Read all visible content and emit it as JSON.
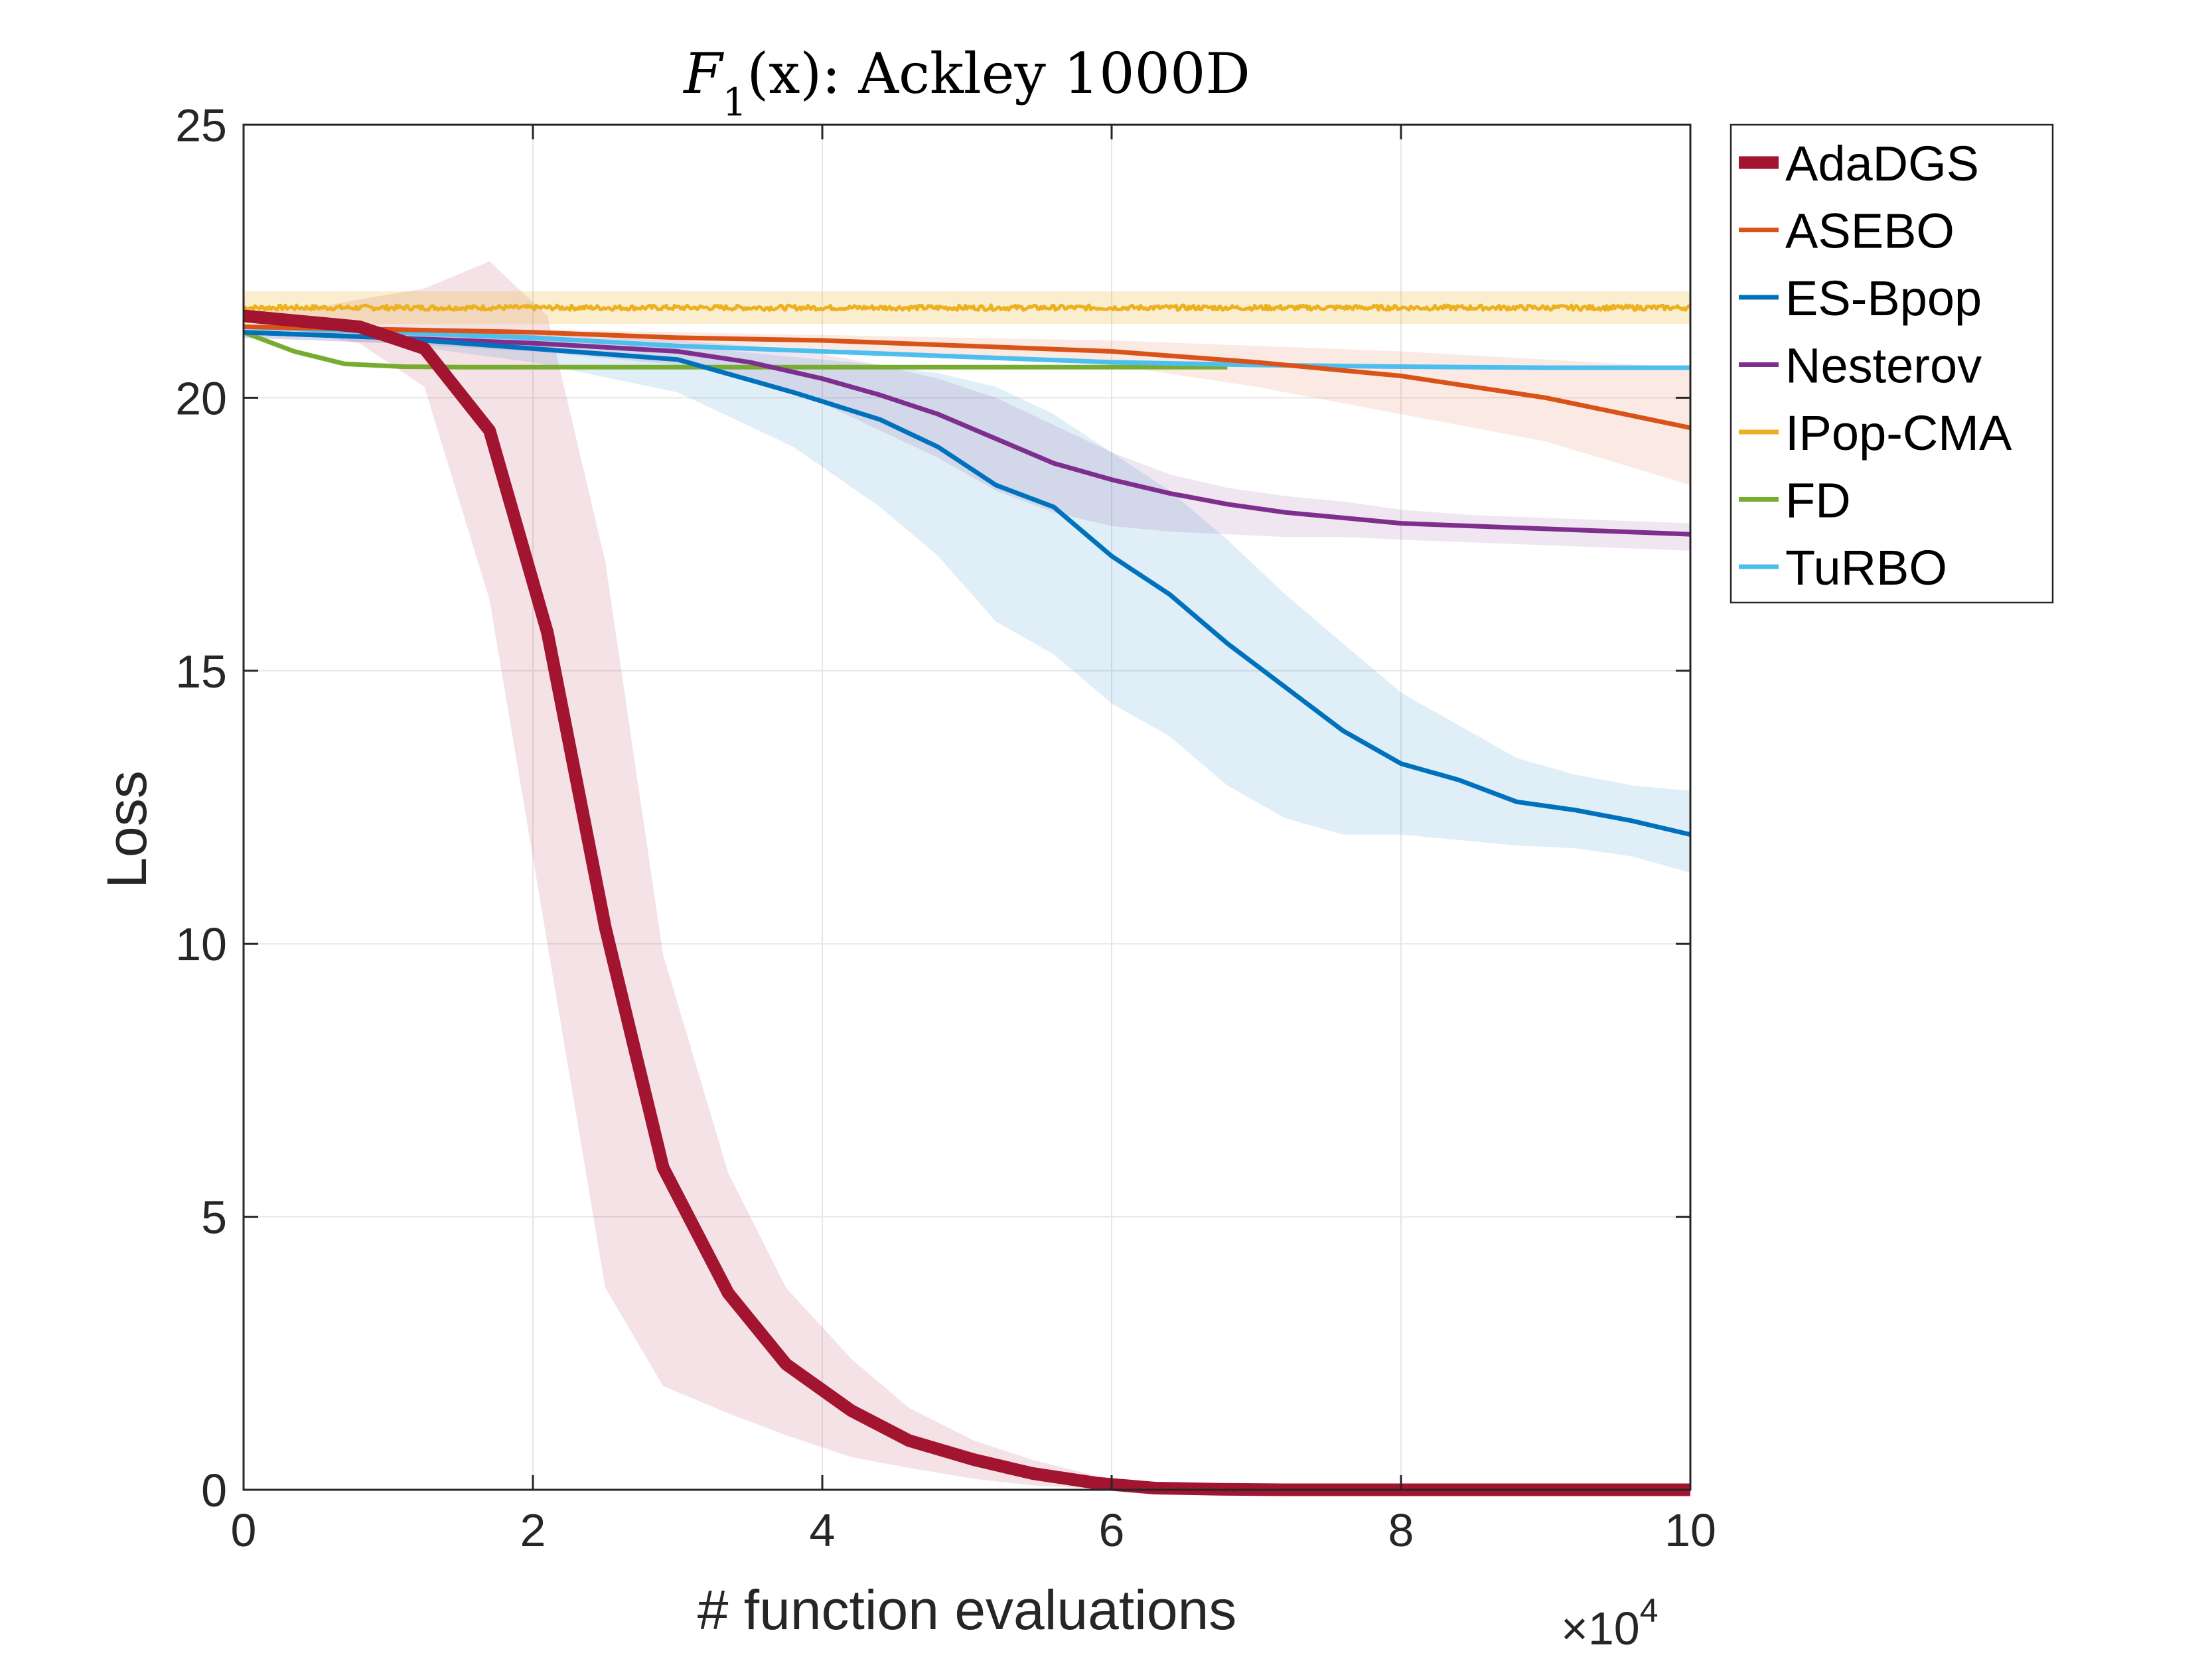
{
  "chart_data": {
    "type": "line",
    "title": "F₁(x): Ackley 1000D",
    "title_parts": {
      "F": "F",
      "sub": "1",
      "rest": "(x):  Ackley 1000D"
    },
    "xlabel": "# function evaluations",
    "ylabel": "Loss",
    "x_multiplier_label": {
      "times": "×10",
      "exp": "4"
    },
    "xlim": [
      0,
      10
    ],
    "ylim": [
      0,
      25
    ],
    "xticks": [
      0,
      2,
      4,
      6,
      8,
      10
    ],
    "yticks": [
      0,
      5,
      10,
      15,
      20,
      25
    ],
    "grid": true,
    "legend_position": "outside-top-right",
    "series": [
      {
        "name": "AdaDGS",
        "color": "#A2142F",
        "line_weight": "thick",
        "x": [
          0,
          0.4,
          0.8,
          1.25,
          1.7,
          2.1,
          2.5,
          2.9,
          3.35,
          3.75,
          4.2,
          4.6,
          5.05,
          5.45,
          5.9,
          6.3,
          6.75,
          7.2,
          8,
          9,
          10
        ],
        "y": [
          21.5,
          21.4,
          21.3,
          20.9,
          19.4,
          15.7,
          10.3,
          5.9,
          3.6,
          2.3,
          1.45,
          0.9,
          0.55,
          0.3,
          0.12,
          0.03,
          0.01,
          0,
          0,
          0,
          0
        ],
        "band_upper": [
          21.6,
          21.6,
          21.8,
          22.0,
          22.5,
          21.5,
          17.0,
          9.8,
          5.8,
          3.7,
          2.4,
          1.5,
          0.9,
          0.55,
          0.25,
          0.08,
          0.03,
          0.01,
          0.01,
          0.01,
          0.01
        ],
        "band_lower": [
          21.4,
          21.2,
          21.0,
          20.2,
          16.3,
          10.0,
          3.7,
          1.9,
          1.4,
          1.0,
          0.6,
          0.4,
          0.2,
          0.08,
          0.02,
          0,
          0,
          0,
          0,
          0,
          0
        ]
      },
      {
        "name": "ASEBO",
        "color": "#D95319",
        "line_weight": "normal",
        "x": [
          0,
          1,
          2,
          3,
          4,
          5,
          6,
          7,
          8,
          9,
          10
        ],
        "y": [
          21.3,
          21.25,
          21.2,
          21.1,
          21.05,
          20.95,
          20.85,
          20.65,
          20.4,
          20.0,
          19.45
        ],
        "band_upper": [
          21.35,
          21.3,
          21.25,
          21.2,
          21.15,
          21.1,
          21.05,
          20.95,
          20.85,
          20.7,
          20.55
        ],
        "band_lower": [
          21.25,
          21.2,
          21.15,
          21.0,
          20.9,
          20.75,
          20.6,
          20.2,
          19.7,
          19.2,
          18.4
        ]
      },
      {
        "name": "ES-Bpop",
        "color": "#0072BD",
        "line_weight": "normal",
        "x": [
          0,
          1,
          2,
          3,
          3.4,
          3.8,
          4.4,
          4.8,
          5.2,
          5.6,
          6,
          6.4,
          6.8,
          7.2,
          7.6,
          8,
          8.4,
          8.8,
          9.2,
          9.6,
          10
        ],
        "y": [
          21.2,
          21.1,
          20.9,
          20.7,
          20.4,
          20.1,
          19.6,
          19.1,
          18.4,
          18.0,
          17.1,
          16.4,
          15.5,
          14.7,
          13.9,
          13.3,
          13.0,
          12.6,
          12.45,
          12.25,
          12.0
        ],
        "band_upper": [
          21.3,
          21.25,
          21.1,
          20.95,
          20.85,
          20.75,
          20.6,
          20.45,
          20.2,
          19.7,
          19.0,
          18.3,
          17.4,
          16.4,
          15.5,
          14.6,
          14.0,
          13.4,
          13.1,
          12.9,
          12.8
        ],
        "band_lower": [
          21.1,
          21.0,
          20.65,
          20.1,
          19.6,
          19.1,
          18.0,
          17.1,
          15.9,
          15.3,
          14.4,
          13.8,
          12.9,
          12.3,
          12.0,
          12.0,
          11.9,
          11.8,
          11.75,
          11.6,
          11.3
        ]
      },
      {
        "name": "Nesterov",
        "color": "#7E2F8E",
        "line_weight": "normal",
        "x": [
          0,
          1,
          2,
          3,
          3.5,
          4,
          4.4,
          4.8,
          5.2,
          5.6,
          6,
          6.4,
          6.8,
          7.2,
          7.6,
          8,
          8.5,
          9,
          9.5,
          10
        ],
        "y": [
          21.2,
          21.1,
          21.0,
          20.85,
          20.65,
          20.35,
          20.05,
          19.7,
          19.25,
          18.8,
          18.5,
          18.25,
          18.05,
          17.9,
          17.8,
          17.7,
          17.65,
          17.6,
          17.55,
          17.5
        ],
        "band_upper": [
          21.3,
          21.2,
          21.15,
          21.05,
          20.95,
          20.8,
          20.6,
          20.35,
          20.0,
          19.5,
          19.0,
          18.6,
          18.35,
          18.2,
          18.1,
          17.95,
          17.85,
          17.8,
          17.75,
          17.7
        ],
        "band_lower": [
          21.1,
          21.0,
          20.85,
          20.6,
          20.35,
          19.9,
          19.4,
          18.9,
          18.3,
          17.9,
          17.65,
          17.55,
          17.5,
          17.45,
          17.45,
          17.4,
          17.35,
          17.3,
          17.25,
          17.2
        ]
      },
      {
        "name": "IPop-CMA",
        "color": "#EDB120",
        "line_weight": "noisy",
        "x": [
          0,
          10
        ],
        "y": [
          21.65,
          21.65
        ],
        "band_upper": [
          21.95,
          21.95
        ],
        "band_lower": [
          21.35,
          21.35
        ]
      },
      {
        "name": "FD",
        "color": "#77AC30",
        "line_weight": "normal",
        "x": [
          0,
          0.35,
          0.7,
          1.1,
          1.5,
          2,
          3,
          4,
          5,
          6,
          6.8
        ],
        "y": [
          21.2,
          20.85,
          20.62,
          20.57,
          20.56,
          20.56,
          20.56,
          20.56,
          20.56,
          20.56,
          20.56
        ],
        "band_upper": [],
        "band_lower": []
      },
      {
        "name": "TuRBO",
        "color": "#4DBEEE",
        "line_weight": "normal",
        "x": [
          0,
          1,
          2,
          3,
          4,
          5,
          6,
          7,
          8,
          9,
          10
        ],
        "y": [
          21.3,
          21.2,
          21.1,
          20.95,
          20.85,
          20.75,
          20.65,
          20.6,
          20.57,
          20.55,
          20.55
        ],
        "band_upper": [],
        "band_lower": []
      }
    ]
  }
}
